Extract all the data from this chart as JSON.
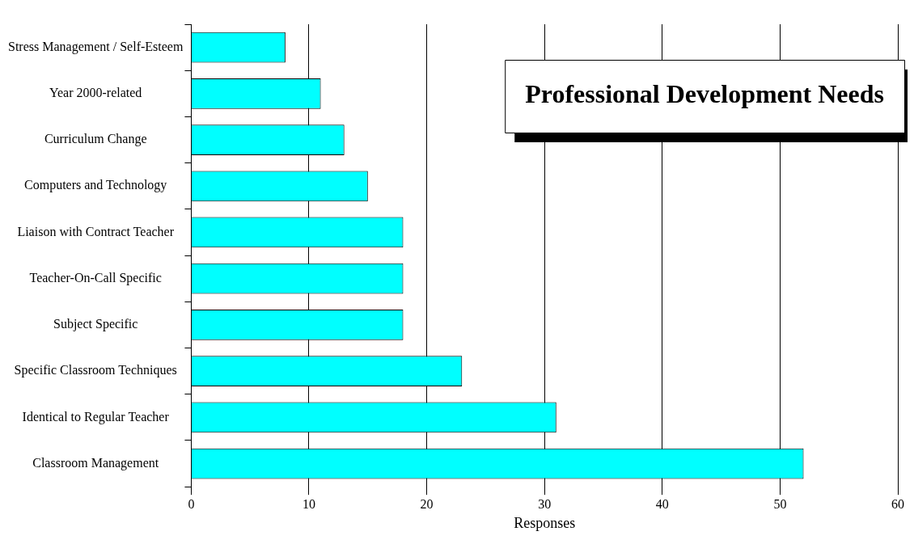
{
  "chart_data": {
    "type": "bar",
    "orientation": "horizontal",
    "title": "Professional Development Needs",
    "xlabel": "Responses",
    "categories": [
      "Stress Management / Self-Esteem",
      "Year 2000-related",
      "Curriculum Change",
      "Computers and Technology",
      "Liaison with Contract Teacher",
      "Teacher-On-Call Specific",
      "Subject Specific",
      "Specific Classroom Techniques",
      "Identical to Regular Teacher",
      "Classroom Management"
    ],
    "values": [
      8,
      11,
      13,
      15,
      18,
      18,
      18,
      23,
      31,
      52
    ],
    "color": "#00ffff",
    "xlim": [
      0,
      60
    ],
    "xticks": [
      0,
      10,
      20,
      30,
      40,
      50,
      60
    ],
    "grid": "x",
    "legend": false
  }
}
